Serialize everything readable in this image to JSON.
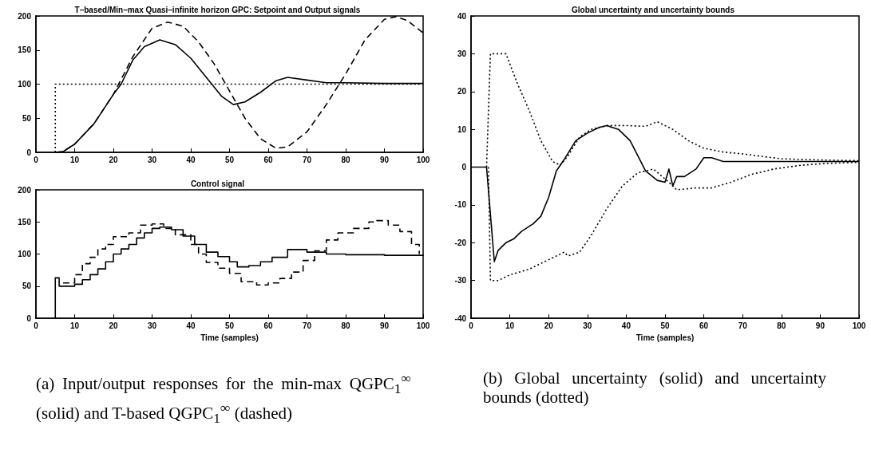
{
  "chart_data": [
    {
      "type": "line",
      "title": "T–based/Min–max Quasi–infinite horizon GPC: Setpoint and Output signals",
      "xlim": [
        0,
        100
      ],
      "xticks": [
        0,
        10,
        20,
        30,
        40,
        50,
        60,
        70,
        80,
        90,
        100
      ],
      "ylim": [
        0,
        200
      ],
      "yticks": [
        0,
        50,
        100,
        150,
        200
      ],
      "grid": false,
      "marker": "none",
      "series": [
        {
          "color": "#000000",
          "line_style": "solid",
          "x": [
            5,
            7,
            10,
            15,
            20,
            22,
            25,
            28,
            32,
            36,
            40,
            44,
            48,
            51,
            54,
            58,
            62,
            65,
            70,
            75,
            80,
            90,
            100
          ],
          "values": [
            0,
            1,
            12,
            42,
            85,
            100,
            135,
            155,
            165,
            158,
            138,
            110,
            82,
            70,
            74,
            88,
            105,
            110,
            106,
            102,
            102,
            101,
            101
          ]
        },
        {
          "color": "#000000",
          "line_style": "dashed",
          "x": [
            5,
            7,
            10,
            15,
            20,
            25,
            30,
            34,
            38,
            42,
            46,
            50,
            54,
            58,
            62,
            65,
            70,
            75,
            80,
            85,
            90,
            93,
            96,
            100
          ],
          "values": [
            0,
            1,
            12,
            42,
            85,
            140,
            182,
            191,
            185,
            162,
            130,
            90,
            50,
            20,
            6,
            8,
            30,
            70,
            115,
            165,
            195,
            199,
            193,
            175
          ]
        },
        {
          "color": "#000000",
          "line_style": "dotted",
          "x": [
            5,
            5,
            100
          ],
          "values": [
            0,
            100,
            100
          ]
        }
      ]
    },
    {
      "type": "step",
      "title": "Control signal",
      "xlabel": "Time (samples)",
      "xlim": [
        0,
        100
      ],
      "xticks": [
        0,
        10,
        20,
        30,
        40,
        50,
        60,
        70,
        80,
        90,
        100
      ],
      "ylim": [
        0,
        200
      ],
      "yticks": [
        0,
        50,
        100,
        150,
        200
      ],
      "grid": false,
      "marker": "none",
      "annotations": [
        "(a) Input/output responses for the min-max QGPC$_{1}$$^{∞}$ (solid) and T-based QGPC$_{1}$$^{∞}$ (dashed)"
      ],
      "series": [
        {
          "color": "#000000",
          "line_style": "solid",
          "x": [
            5,
            5,
            6,
            7,
            10,
            12,
            14,
            16,
            18,
            20,
            22,
            24,
            26,
            28,
            30,
            32,
            35,
            38,
            41,
            44,
            47,
            50,
            52,
            55,
            58,
            61,
            65,
            70,
            75,
            80,
            90,
            100
          ],
          "values": [
            0,
            63,
            50,
            50,
            53,
            60,
            68,
            77,
            88,
            100,
            108,
            115,
            125,
            133,
            140,
            142,
            138,
            128,
            115,
            103,
            96,
            88,
            80,
            82,
            88,
            95,
            107,
            103,
            100,
            99,
            98,
            99
          ]
        },
        {
          "color": "#000000",
          "line_style": "dashed",
          "x": [
            7,
            10,
            12,
            14,
            16,
            18,
            20,
            24,
            27,
            30,
            33,
            36,
            40,
            42,
            44,
            47,
            50,
            53,
            57,
            60,
            63,
            66,
            69,
            72,
            75,
            78,
            82,
            86,
            88,
            91,
            94,
            97,
            99
          ],
          "values": [
            55,
            68,
            85,
            95,
            108,
            115,
            127,
            133,
            145,
            147,
            140,
            130,
            115,
            100,
            87,
            78,
            70,
            57,
            52,
            55,
            62,
            72,
            90,
            105,
            122,
            133,
            140,
            150,
            152,
            145,
            135,
            115,
            100
          ]
        }
      ]
    },
    {
      "type": "line",
      "title": "Global uncertainty and uncertainty bounds",
      "xlabel": "Time (samples)",
      "xlim": [
        0,
        100
      ],
      "xticks": [
        0,
        10,
        20,
        30,
        40,
        50,
        60,
        70,
        80,
        90,
        100
      ],
      "ylim": [
        -40,
        40
      ],
      "yticks": [
        -40,
        -30,
        -20,
        -10,
        0,
        10,
        20,
        30,
        40
      ],
      "grid": false,
      "marker": "none",
      "annotations": [
        "(b) Global uncertainty (solid) and uncertainty bounds (dotted)"
      ],
      "series": [
        {
          "color": "#000000",
          "line_style": "solid",
          "x": [
            0,
            4,
            6,
            7,
            9,
            11,
            13,
            16,
            18,
            20,
            22,
            24,
            27,
            30,
            33,
            35,
            38,
            41,
            43,
            45,
            48,
            50,
            51,
            52,
            53,
            55,
            58,
            60,
            62,
            65,
            70,
            100
          ],
          "values": [
            0,
            0,
            -25,
            -22,
            -20,
            -19,
            -17,
            -15,
            -13,
            -8,
            -1,
            2,
            7,
            9,
            10.5,
            11,
            10,
            7,
            3,
            -1,
            -3.5,
            -4,
            -0.5,
            -5,
            -2.5,
            -2.5,
            -0.5,
            2.5,
            2.5,
            1.5,
            1.5,
            1.5
          ]
        },
        {
          "color": "#000000",
          "line_style": "dotted",
          "x": [
            4,
            5,
            9,
            12,
            15,
            18,
            21,
            23,
            25,
            28,
            31,
            35,
            40,
            45,
            48,
            52,
            56,
            60,
            65,
            70,
            80,
            90,
            100
          ],
          "values": [
            0,
            30,
            30,
            22,
            15,
            7,
            1.5,
            0.5,
            3,
            8,
            10,
            11,
            11,
            10.8,
            12,
            10,
            7,
            5,
            4,
            3.5,
            2.2,
            1.9,
            1.7
          ]
        },
        {
          "color": "#000000",
          "line_style": "dotted",
          "x": [
            4.5,
            5,
            7,
            10,
            15,
            20,
            24,
            25,
            28,
            31,
            35,
            39,
            43,
            47,
            51,
            53,
            58,
            62,
            67,
            72,
            78,
            85,
            92,
            100
          ],
          "values": [
            0,
            -30,
            -30,
            -28.5,
            -27,
            -24.5,
            -22.5,
            -23.5,
            -22.5,
            -18,
            -11,
            -5,
            -1.5,
            -0.5,
            -4,
            -6,
            -5.5,
            -5.5,
            -4,
            -2,
            -0.5,
            0.5,
            1,
            1.3
          ]
        }
      ]
    }
  ]
}
